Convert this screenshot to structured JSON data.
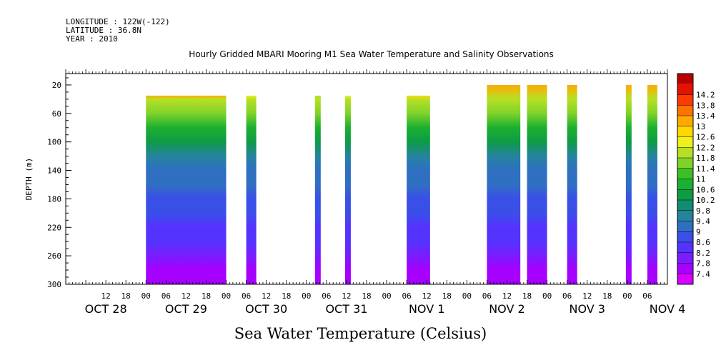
{
  "meta": {
    "longitude": "LONGITUDE : 122W(-122)",
    "latitude": "LATITUDE : 36.8N",
    "year": "YEAR : 2010"
  },
  "title": "Hourly Gridded MBARI Mooring M1 Sea Water Temperature and Salinity Observations",
  "caption": "Sea Water Temperature (Celsius)",
  "chart_data": {
    "type": "heatmap",
    "title": "Hourly Gridded MBARI Mooring M1 Sea Water Temperature and Salinity Observations",
    "xlabel": "",
    "ylabel": "DEPTH (m)",
    "colorbar_label": "Sea Water Temperature (Celsius)",
    "x_hour_range": [
      0,
      168
    ],
    "x_hour_ticks": [
      "12",
      "18",
      "00",
      "06",
      "12",
      "18",
      "00",
      "06",
      "12",
      "18",
      "00",
      "06",
      "12",
      "18",
      "00",
      "06",
      "12",
      "18",
      "00",
      "06",
      "12",
      "18",
      "00",
      "06",
      "12",
      "18",
      "00",
      "06"
    ],
    "x_day_labels": [
      "OCT 28",
      "OCT 29",
      "OCT 30",
      "OCT 31",
      "NOV  1",
      "NOV  2",
      "NOV  3",
      "NOV  4"
    ],
    "ylim": [
      300,
      4
    ],
    "y_ticks": [
      20,
      60,
      100,
      140,
      180,
      220,
      260,
      300
    ],
    "colorbar_levels": [
      7.4,
      7.8,
      8.2,
      8.6,
      9,
      9.4,
      9.8,
      10.2,
      10.6,
      11,
      11.4,
      11.8,
      12.2,
      12.6,
      13,
      13.4,
      13.8,
      14.2
    ],
    "colorbar_colors": [
      "#d800ff",
      "#a600ff",
      "#7a1cff",
      "#5533ff",
      "#3a4fe8",
      "#2f6fc2",
      "#24849e",
      "#118c73",
      "#0e9b45",
      "#1bb031",
      "#3cc028",
      "#7fd229",
      "#b7e025",
      "#eef11a",
      "#ffd800",
      "#ffaa00",
      "#ff7200",
      "#ff3a00",
      "#e61200",
      "#b80000"
    ],
    "segments": [
      {
        "start": "OCT 29 00",
        "end": "OCT 30 00",
        "top_depth": 35,
        "surface_temp": 13.0
      },
      {
        "start": "OCT 30 06",
        "end": "OCT 30 09",
        "top_depth": 35,
        "surface_temp": 12.2
      },
      {
        "start": "OCT 31 03",
        "end": "OCT 31 04",
        "top_depth": 35,
        "surface_temp": 12.0
      },
      {
        "start": "OCT 31 12",
        "end": "OCT 31 13",
        "top_depth": 35,
        "surface_temp": 12.2
      },
      {
        "start": "NOV 1 06",
        "end": "NOV 1 13",
        "top_depth": 35,
        "surface_temp": 12.6
      },
      {
        "start": "NOV 2 06",
        "end": "NOV 2 16",
        "top_depth": 20,
        "surface_temp": 12.8
      },
      {
        "start": "NOV 2 18",
        "end": "NOV 3 00",
        "top_depth": 20,
        "surface_temp": 13.0
      },
      {
        "start": "NOV 3 06",
        "end": "NOV 3 09",
        "top_depth": 20,
        "surface_temp": 12.6
      },
      {
        "start": "NOV 4 00",
        "end": "NOV 4 01",
        "top_depth": 20,
        "surface_temp": 12.4
      },
      {
        "start": "NOV 4 06",
        "end": "NOV 4 09",
        "top_depth": 20,
        "surface_temp": 12.4
      }
    ],
    "segment_hours": [
      [
        24,
        48
      ],
      [
        54,
        57
      ],
      [
        75,
        76
      ],
      [
        84,
        85
      ],
      [
        102,
        109
      ],
      [
        126,
        136
      ],
      [
        138,
        144
      ],
      [
        150,
        153
      ],
      [
        168,
        169
      ],
      [
        174,
        177
      ]
    ],
    "depth_profile": [
      {
        "depth": 20,
        "temp": 13.0
      },
      {
        "depth": 40,
        "temp": 12.0
      },
      {
        "depth": 60,
        "temp": 11.4
      },
      {
        "depth": 80,
        "temp": 10.8
      },
      {
        "depth": 100,
        "temp": 10.2
      },
      {
        "depth": 120,
        "temp": 9.7
      },
      {
        "depth": 140,
        "temp": 9.3
      },
      {
        "depth": 160,
        "temp": 9.0
      },
      {
        "depth": 180,
        "temp": 8.8
      },
      {
        "depth": 200,
        "temp": 8.6
      },
      {
        "depth": 220,
        "temp": 8.4
      },
      {
        "depth": 240,
        "temp": 8.2
      },
      {
        "depth": 260,
        "temp": 8.0
      },
      {
        "depth": 280,
        "temp": 7.7
      },
      {
        "depth": 300,
        "temp": 7.4
      }
    ]
  }
}
